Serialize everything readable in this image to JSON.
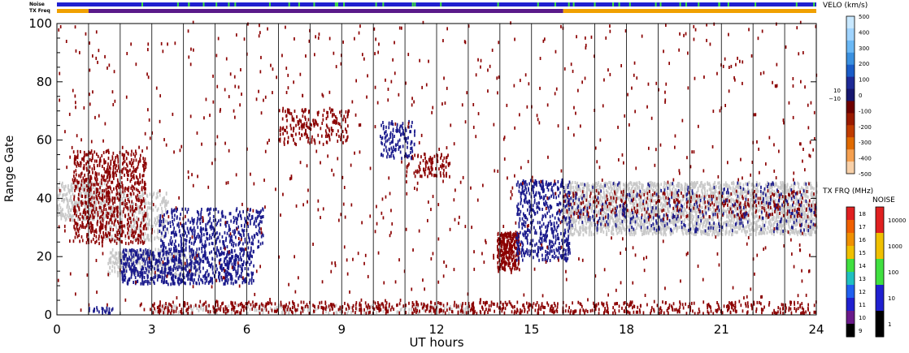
{
  "chart_data": {
    "type": "heatmap",
    "xlabel": "UT hours",
    "ylabel": "Range Gate",
    "xlim": [
      0,
      24
    ],
    "ylim": [
      0,
      100
    ],
    "x_ticks": [
      "0",
      "3",
      "6",
      "9",
      "12",
      "15",
      "18",
      "21",
      "24"
    ],
    "y_ticks": [
      "0",
      "20",
      "40",
      "60",
      "80",
      "100"
    ],
    "hour_lines": [
      1,
      2,
      3,
      4,
      5,
      6,
      7,
      8,
      9,
      10,
      11,
      12,
      13,
      14,
      15,
      16,
      17,
      18,
      19,
      20,
      21,
      22,
      23
    ],
    "top_bars": {
      "noise_label": "Noise",
      "txfreq_label": "TX Freq",
      "txfreq_segments": [
        {
          "start": 0.0,
          "end": 1.0,
          "color": "#f0a000"
        },
        {
          "start": 1.0,
          "end": 16.0,
          "color": "#5a1a8a"
        },
        {
          "start": 16.0,
          "end": 24.0,
          "color": "#f0a000"
        }
      ]
    },
    "series": [
      {
        "name": "ground scatter",
        "color": "#c8c8c8",
        "regions": [
          {
            "x0": 0.0,
            "x1": 1.5,
            "y0": 32,
            "y1": 45,
            "density": 0.55
          },
          {
            "x0": 1.5,
            "x1": 3.5,
            "y0": 25,
            "y1": 42,
            "density": 0.35
          },
          {
            "x0": 1.6,
            "x1": 4.5,
            "y0": 13,
            "y1": 22,
            "density": 0.45
          },
          {
            "x0": 16.0,
            "x1": 24.0,
            "y0": 27,
            "y1": 45,
            "density": 0.7
          },
          {
            "x0": 3.0,
            "x1": 13.0,
            "y0": 0,
            "y1": 3,
            "density": 0.25
          }
        ]
      },
      {
        "name": "negative velocity",
        "color": "#8b0000",
        "regions": [
          {
            "x0": 0.5,
            "x1": 2.8,
            "y0": 24,
            "y1": 56,
            "density": 0.35
          },
          {
            "x0": 13.9,
            "x1": 14.6,
            "y0": 15,
            "y1": 28,
            "density": 0.95
          },
          {
            "x0": 3.0,
            "x1": 24.0,
            "y0": 0,
            "y1": 4,
            "density": 0.3
          },
          {
            "x0": 7.0,
            "x1": 9.2,
            "y0": 58,
            "y1": 70,
            "density": 0.25
          },
          {
            "x0": 11.0,
            "x1": 12.4,
            "y0": 47,
            "y1": 55,
            "density": 0.3
          },
          {
            "x0": 16.0,
            "x1": 24.0,
            "y0": 33,
            "y1": 42,
            "density": 0.15
          }
        ]
      },
      {
        "name": "positive velocity",
        "color": "#1a1a8c",
        "regions": [
          {
            "x0": 2.0,
            "x1": 6.2,
            "y0": 10,
            "y1": 22,
            "density": 0.5
          },
          {
            "x0": 3.2,
            "x1": 6.5,
            "y0": 22,
            "y1": 36,
            "density": 0.3
          },
          {
            "x0": 14.5,
            "x1": 16.2,
            "y0": 18,
            "y1": 46,
            "density": 0.35
          },
          {
            "x0": 10.2,
            "x1": 11.3,
            "y0": 53,
            "y1": 66,
            "density": 0.3
          },
          {
            "x0": 16.0,
            "x1": 24.0,
            "y0": 28,
            "y1": 45,
            "density": 0.08
          },
          {
            "x0": 1.0,
            "x1": 1.8,
            "y0": 0,
            "y1": 2,
            "density": 0.5
          }
        ]
      },
      {
        "name": "scattered points",
        "color": "#8b0000",
        "regions": [
          {
            "x0": 0.0,
            "x1": 24.0,
            "y0": 0,
            "y1": 100,
            "density": 0.012
          }
        ]
      }
    ]
  },
  "velocity_scale": {
    "title": "VELO (km/s)",
    "ticks": [
      "500",
      "400",
      "300",
      "200",
      "100",
      "0",
      "-100",
      "-200",
      "-300",
      "-400",
      "-500"
    ],
    "near_zero": [
      "10",
      "−10"
    ],
    "colors": [
      "#c8e8ff",
      "#a0d4ff",
      "#6ab8f5",
      "#3a90e0",
      "#1a5cc8",
      "#1e2a96",
      "#16166e",
      "#6e0000",
      "#9a1a00",
      "#c03c00",
      "#e06a00",
      "#f5a050",
      "#f8d0a8"
    ]
  },
  "txfreq_scale": {
    "title": "TX FRQ (MHz)",
    "ticks": [
      "18",
      "17",
      "16",
      "15",
      "14",
      "13",
      "12",
      "11",
      "10",
      "9"
    ],
    "colors": [
      "#e02020",
      "#f06000",
      "#f09000",
      "#f0c000",
      "#40e040",
      "#20c0c0",
      "#2060f0",
      "#2020d0",
      "#6a1a8a",
      "#000000"
    ]
  },
  "noise_scale": {
    "title": "NOISE",
    "ticks": [
      "10000",
      "1000",
      "100",
      "10",
      "1"
    ],
    "colors": [
      "#e02020",
      "#f0c000",
      "#40e040",
      "#2020d0",
      "#000000"
    ]
  }
}
